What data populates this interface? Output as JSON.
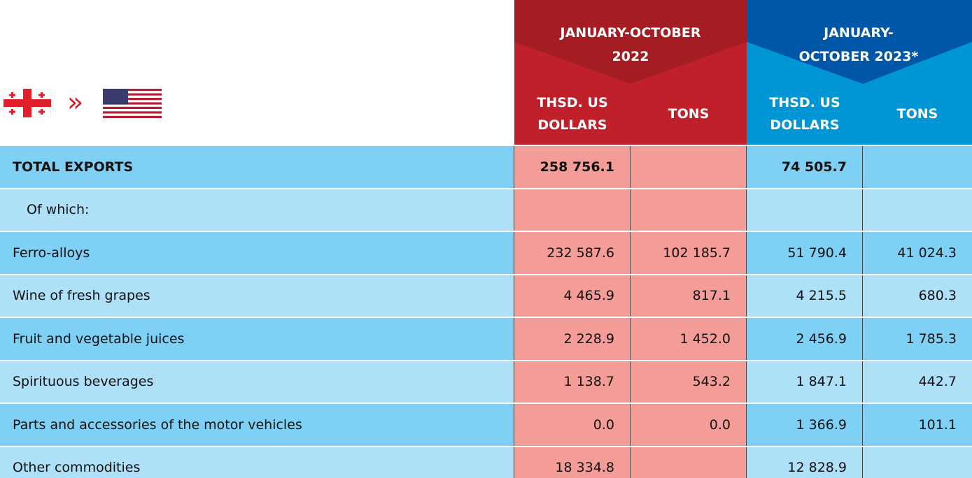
{
  "header": {
    "groups": [
      {
        "period": "JANUARY-OCTOBER 2022",
        "columns": [
          "THSD. US DOLLARS",
          "TONS"
        ]
      },
      {
        "period": "JANUARY-OCTOBER 2023*",
        "columns": [
          "THSD. US DOLLARS",
          "TONS"
        ]
      }
    ],
    "direction": "»"
  },
  "table": {
    "rows": [
      {
        "label": "TOTAL EXPORTS",
        "values": [
          "258 756.1",
          null,
          "74 505.7",
          null
        ]
      },
      {
        "label": "Of which:",
        "values": [
          null,
          null,
          null,
          null
        ]
      },
      {
        "label": "Ferro-alloys",
        "values": [
          "232 587.6",
          "102 185.7",
          "51 790.4",
          "41 024.3"
        ]
      },
      {
        "label": "Wine of fresh grapes",
        "values": [
          "4 465.9",
          "817.1",
          "4 215.5",
          "680.3"
        ]
      },
      {
        "label": "Fruit and vegetable juices",
        "values": [
          "2 228.9",
          "1 452.0",
          "2 456.9",
          "1 785.3"
        ]
      },
      {
        "label": "Spirituous beverages",
        "values": [
          "1 138.7",
          "543.2",
          "1 847.1",
          "442.7"
        ]
      },
      {
        "label": "Parts and accessories of the motor vehicles",
        "values": [
          "0.0",
          "0.0",
          "1 366.9",
          "101.1"
        ]
      },
      {
        "label": "Other commodities",
        "values": [
          "18 334.8",
          null,
          "12 828.9",
          null
        ]
      }
    ]
  }
}
